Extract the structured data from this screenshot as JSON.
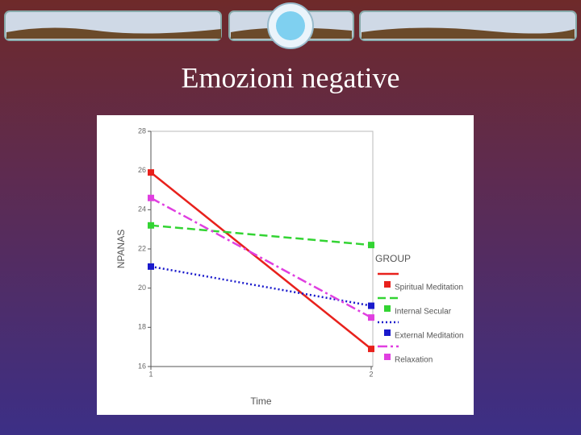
{
  "title": "Emozioni negative",
  "chart_data": {
    "type": "line",
    "x_label": "Time",
    "y_label": "NPANAS",
    "x": [
      1,
      2
    ],
    "xlim": [
      1,
      2
    ],
    "xticks": [
      1,
      2
    ],
    "ylim": [
      16,
      28
    ],
    "yticks": [
      16,
      18,
      20,
      22,
      24,
      26,
      28
    ],
    "legend_title": "GROUP",
    "legend": "right",
    "series": [
      {
        "name": "Spiritual Meditation",
        "color": "#e8211c",
        "dash": "solid",
        "values": [
          25.9,
          16.9
        ]
      },
      {
        "name": "Internal Secular",
        "color": "#33d433",
        "dash": "dashed",
        "values": [
          23.2,
          22.2
        ]
      },
      {
        "name": "External Meditation",
        "color": "#1a1acc",
        "dash": "dotted",
        "values": [
          21.1,
          19.1
        ]
      },
      {
        "name": "Relaxation",
        "color": "#e03fe0",
        "dash": "dashdot",
        "values": [
          24.6,
          18.5
        ]
      }
    ]
  }
}
